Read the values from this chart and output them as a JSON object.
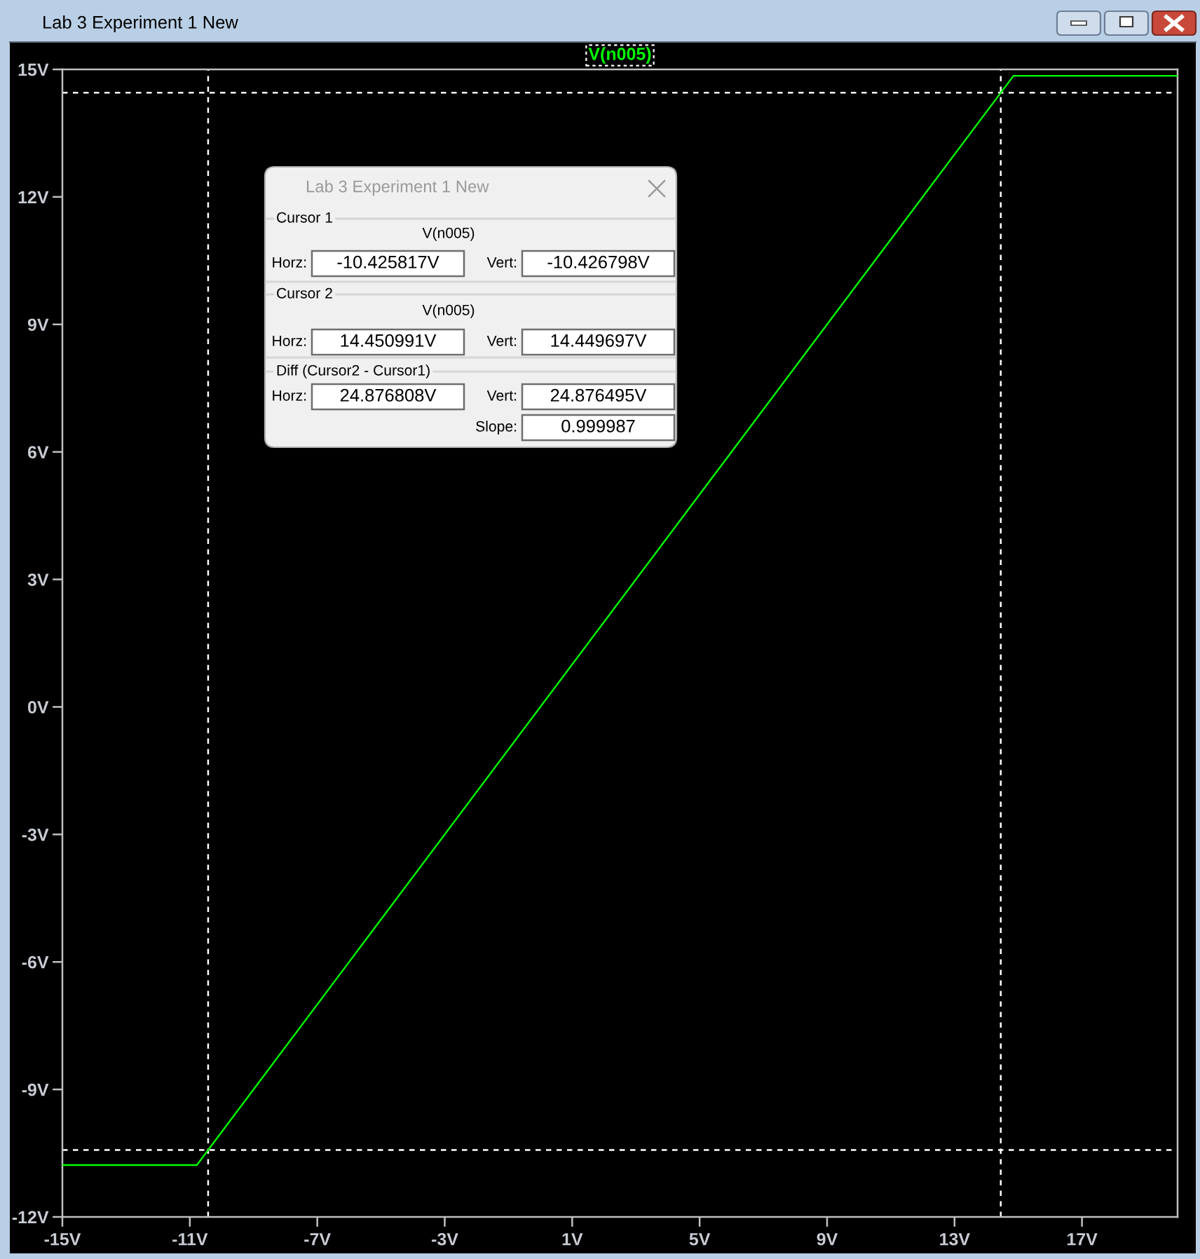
{
  "chart_data": {
    "type": "line",
    "title": "Lab 3 Experiment 1 New",
    "x": [
      -15,
      -10.78,
      14.85,
      20
    ],
    "series": [
      {
        "name": "V(n005)",
        "color": "#00ff00",
        "values": [
          -10.78,
          -10.78,
          14.85,
          14.85
        ]
      }
    ],
    "xlim": [
      -15,
      20
    ],
    "ylim": [
      -12,
      15
    ],
    "xticks": [
      {
        "value": -15,
        "label": "-15V"
      },
      {
        "value": -11,
        "label": "-11V"
      },
      {
        "value": -7,
        "label": "-7V"
      },
      {
        "value": -3,
        "label": "-3V"
      },
      {
        "value": 1,
        "label": "1V"
      },
      {
        "value": 5,
        "label": "5V"
      },
      {
        "value": 9,
        "label": "9V"
      },
      {
        "value": 13,
        "label": "13V"
      },
      {
        "value": 17,
        "label": "17V"
      }
    ],
    "yticks": [
      {
        "value": -12,
        "label": "-12V"
      },
      {
        "value": -9,
        "label": "-9V"
      },
      {
        "value": -6,
        "label": "-6V"
      },
      {
        "value": -3,
        "label": "-3V"
      },
      {
        "value": 0,
        "label": "0V"
      },
      {
        "value": 3,
        "label": "3V"
      },
      {
        "value": 6,
        "label": "6V"
      },
      {
        "value": 9,
        "label": "9V"
      },
      {
        "value": 12,
        "label": "12V"
      },
      {
        "value": 15,
        "label": "15V"
      }
    ],
    "ref_lines": [
      {
        "axis": "x",
        "value": -10.425817,
        "color": "#ffffff",
        "line_style": "dashed"
      },
      {
        "axis": "x",
        "value": 14.450991,
        "color": "#ffffff",
        "line_style": "dashed"
      },
      {
        "axis": "y",
        "value": -10.426798,
        "color": "#ffffff",
        "line_style": "dashed"
      },
      {
        "axis": "y",
        "value": 14.449697,
        "color": "#ffffff",
        "line_style": "dashed"
      }
    ],
    "legend": "top",
    "marker": "none",
    "line_style": "solid",
    "annotations": [
      "Lab 3 Experiment 1 New",
      "Cursor 1",
      "V(n005)",
      "Horz:",
      "-10.425817V",
      "Vert:",
      "-10.426798V",
      "Cursor 2",
      "V(n005)",
      "Horz:",
      "14.450991V",
      "Vert:",
      "14.449697V",
      "Diff (Cursor2 - Cursor1)",
      "Horz:",
      "24.876808V",
      "Vert:",
      "24.876495V",
      "Slope:",
      "0.999987"
    ]
  }
}
